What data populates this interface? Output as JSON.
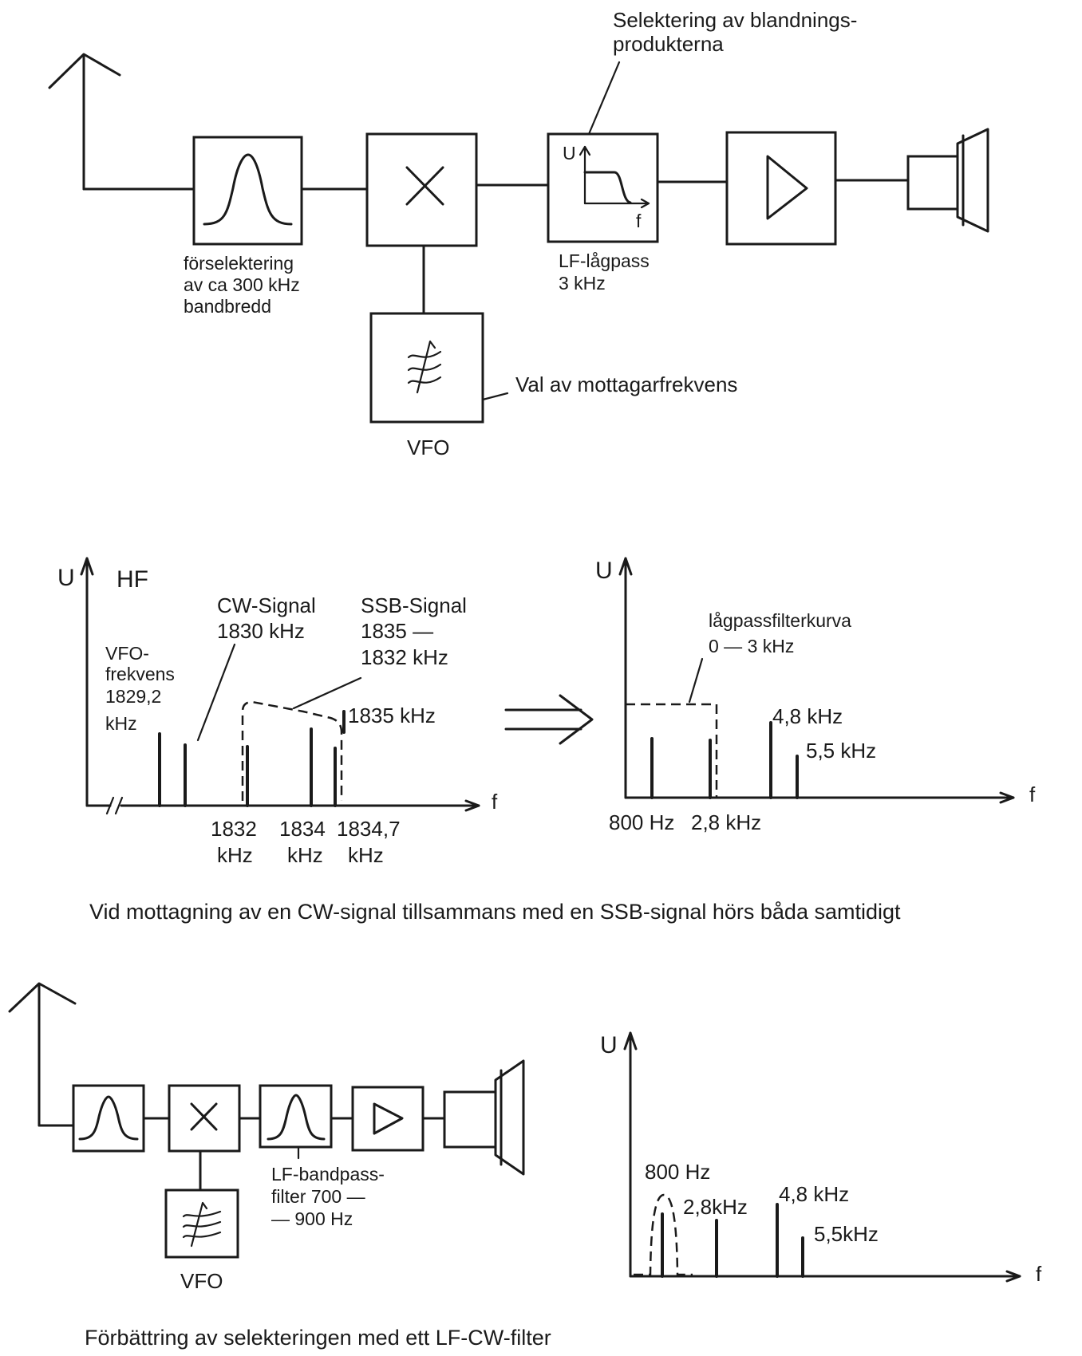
{
  "top_diagram": {
    "mixer_output_note": [
      "Selektering av blandnings-",
      "produkterna"
    ],
    "preselector_label": [
      "förselektering",
      "av ca 300 kHz",
      "bandbredd"
    ],
    "lowpass_axis_u": "U",
    "lowpass_axis_f": "f",
    "lowpass_label": [
      "LF-lågpass",
      "3 kHz"
    ],
    "vfo_note": "Val av mottagarfrekvens",
    "vfo_label": "VFO"
  },
  "hf_spectrum": {
    "axis_u": "U",
    "title": "HF",
    "axis_f": "f",
    "cw_label": [
      "CW-Signal",
      "1830 kHz"
    ],
    "ssb_label": [
      "SSB-Signal",
      "1835 —",
      "1832 kHz"
    ],
    "vfo_label": [
      "VFO-",
      "frekvens",
      "1829,2",
      "kHz"
    ],
    "mark_1835": "1835 kHz",
    "tick_labels": [
      [
        "1832",
        "kHz"
      ],
      [
        "1834",
        "kHz"
      ],
      [
        "1834,7",
        "kHz"
      ]
    ]
  },
  "lf_spectrum": {
    "axis_u": "U",
    "axis_f": "f",
    "filter_label": [
      "lågpassfilterkurva",
      "0  —  3  kHz"
    ],
    "label_48": "4,8  kHz",
    "label_55": "5,5 kHz",
    "label_800": "800 Hz",
    "label_28": "2,8 kHz"
  },
  "caption_1": "Vid mottagning av en  CW-signal tillsammans med en SSB-signal hörs båda samtidigt",
  "bottom_diagram": {
    "bandpass_label": [
      "LF-bandpass-",
      "filter 700 —",
      "— 900 Hz"
    ],
    "vfo_label": "VFO"
  },
  "bottom_spectrum": {
    "axis_u": "U",
    "axis_f": "f",
    "label_800": "800 Hz",
    "label_28": "2,8kHz",
    "label_48": "4,8 kHz",
    "label_55": "5,5kHz"
  },
  "caption_2": "Förbättring av selekteringen med ett LF-CW-filter",
  "chart_data": [
    {
      "type": "bar",
      "title": "HF",
      "xlabel": "f",
      "ylabel": "U",
      "x_unit": "kHz",
      "series": [
        {
          "name": "VFO-frekvens",
          "x": [
            1829.2
          ]
        },
        {
          "name": "CW-Signal",
          "x": [
            1830
          ]
        },
        {
          "name": "SSB-Signal",
          "x": [
            1832,
            1834,
            1834.7
          ]
        }
      ],
      "annotations": [
        "1835 kHz"
      ]
    },
    {
      "type": "bar",
      "xlabel": "f",
      "ylabel": "U",
      "x_values": [
        "800 Hz",
        "2,8 kHz",
        "4,8 kHz",
        "5,5 kHz"
      ],
      "filter": "lågpassfilterkurva 0 — 3 kHz"
    },
    {
      "type": "bar",
      "xlabel": "f",
      "ylabel": "U",
      "x_values": [
        "800 Hz",
        "2,8kHz",
        "4,8 kHz",
        "5,5kHz"
      ],
      "filter": "LF-bandpass 700 — 900 Hz"
    }
  ]
}
